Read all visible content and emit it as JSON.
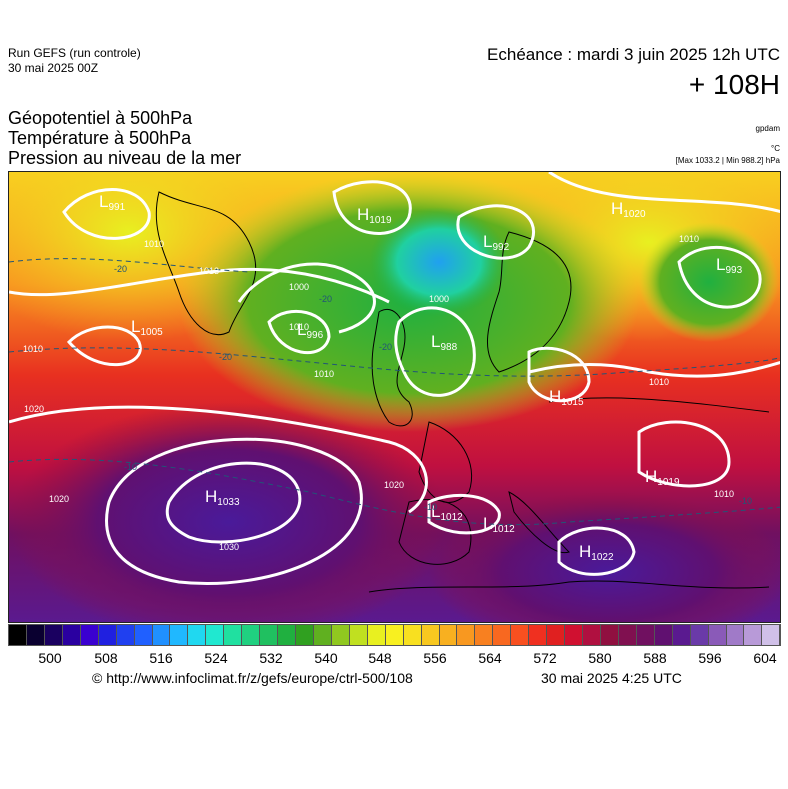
{
  "header": {
    "run_label": "Run GEFS (run controle)",
    "run_date": "30 mai 2025 00Z",
    "echeance": "Echéance : mardi 3 juin 2025 12h UTC",
    "lead": "+ 108H",
    "title_lines": [
      "Géopotentiel à 500hPa",
      "Température à 500hPa",
      "Pression au niveau de la mer"
    ],
    "unit_gpdam": "gpdam",
    "unit_c": "°C",
    "unit_hpa": "[Max 1033.2 | Min 988.2] hPa"
  },
  "map": {
    "pressure_centers": [
      {
        "type": "L",
        "value": "991"
      },
      {
        "type": "H",
        "value": "1019"
      },
      {
        "type": "L",
        "value": "992"
      },
      {
        "type": "H",
        "value": "1020"
      },
      {
        "type": "L",
        "value": "993"
      },
      {
        "type": "L",
        "value": "1005"
      },
      {
        "type": "L",
        "value": "996"
      },
      {
        "type": "L",
        "value": "988"
      },
      {
        "type": "H",
        "value": "1015"
      },
      {
        "type": "H",
        "value": "1033"
      },
      {
        "type": "L",
        "value": "1012"
      },
      {
        "type": "L",
        "value": "1012"
      },
      {
        "type": "H",
        "value": "1019"
      },
      {
        "type": "H",
        "value": "1022"
      }
    ],
    "isobar_labels": [
      "1010",
      "1013",
      "1000",
      "1010",
      "1010",
      "1000",
      "1010",
      "1010",
      "1020",
      "1020",
      "1030",
      "1020",
      "1010",
      "1010"
    ],
    "isotherm_labels": [
      "-20",
      "-20",
      "-20",
      "-20",
      "-10",
      "-10",
      "-10"
    ],
    "colors": {
      "isobar": "#ffffff",
      "coast": "#000000"
    }
  },
  "colorbar": {
    "colors": [
      "#000000",
      "#0a0030",
      "#1a0060",
      "#2a00a0",
      "#3a00d0",
      "#2020e0",
      "#2040f0",
      "#2060ff",
      "#2090ff",
      "#20b8ff",
      "#20d8f0",
      "#20e8d0",
      "#20e0a0",
      "#20d080",
      "#20c060",
      "#20b040",
      "#30a020",
      "#60b020",
      "#90c820",
      "#c0e020",
      "#e8f020",
      "#f8f020",
      "#f8e020",
      "#f8c820",
      "#f8b020",
      "#f89820",
      "#f88020",
      "#f86820",
      "#f85020",
      "#f03020",
      "#e02020",
      "#d01030",
      "#b01040",
      "#901040",
      "#801050",
      "#701060",
      "#601070",
      "#5a1a90",
      "#6a3aa8",
      "#8a5ab8",
      "#a07ac8",
      "#b89ad8",
      "#d0c0e8"
    ],
    "ticks": [
      "500",
      "508",
      "516",
      "524",
      "532",
      "540",
      "548",
      "556",
      "564",
      "572",
      "580",
      "588",
      "596",
      "604"
    ]
  },
  "footer": {
    "url": "© http://www.infoclimat.fr/z/gefs/europe/ctrl-500/108",
    "date": "30 mai 2025  4:25 UTC"
  }
}
